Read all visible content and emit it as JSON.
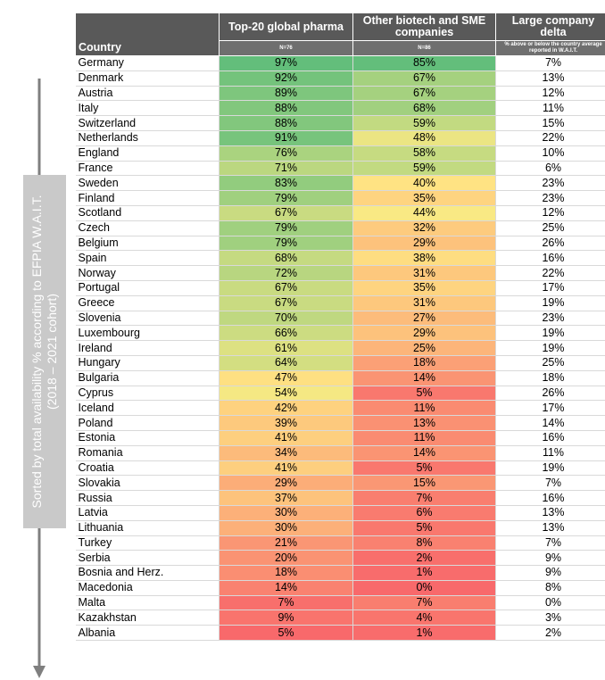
{
  "side_note": "Sorted by total availability % according to EFPIA W.A.I.T. (2018 – 2021 cohort)",
  "table": {
    "header": [
      "Country",
      "Top-20 global pharma",
      "Other biotech and SME companies",
      "Large company delta"
    ],
    "subheader": [
      "",
      "N=76",
      "N=86",
      "% above or below the country average reported in W.A.I.T."
    ],
    "rows": [
      [
        "Germany",
        "97%",
        "85%",
        "7%"
      ],
      [
        "Denmark",
        "92%",
        "67%",
        "13%"
      ],
      [
        "Austria",
        "89%",
        "67%",
        "12%"
      ],
      [
        "Italy",
        "88%",
        "68%",
        "11%"
      ],
      [
        "Switzerland",
        "88%",
        "59%",
        "15%"
      ],
      [
        "Netherlands",
        "91%",
        "48%",
        "22%"
      ],
      [
        "England",
        "76%",
        "58%",
        "10%"
      ],
      [
        "France",
        "71%",
        "59%",
        "6%"
      ],
      [
        "Sweden",
        "83%",
        "40%",
        "23%"
      ],
      [
        "Finland",
        "79%",
        "35%",
        "23%"
      ],
      [
        "Scotland",
        "67%",
        "44%",
        "12%"
      ],
      [
        "Czech",
        "79%",
        "32%",
        "25%"
      ],
      [
        "Belgium",
        "79%",
        "29%",
        "26%"
      ],
      [
        "Spain",
        "68%",
        "38%",
        "16%"
      ],
      [
        "Norway",
        "72%",
        "31%",
        "22%"
      ],
      [
        "Portugal",
        "67%",
        "35%",
        "17%"
      ],
      [
        "Greece",
        "67%",
        "31%",
        "19%"
      ],
      [
        "Slovenia",
        "70%",
        "27%",
        "23%"
      ],
      [
        "Luxembourg",
        "66%",
        "29%",
        "19%"
      ],
      [
        "Ireland",
        "61%",
        "25%",
        "19%"
      ],
      [
        "Hungary",
        "64%",
        "18%",
        "25%"
      ],
      [
        "Bulgaria",
        "47%",
        "14%",
        "18%"
      ],
      [
        "Cyprus",
        "54%",
        "5%",
        "26%"
      ],
      [
        "Iceland",
        "42%",
        "11%",
        "17%"
      ],
      [
        "Poland",
        "39%",
        "13%",
        "14%"
      ],
      [
        "Estonia",
        "41%",
        "11%",
        "16%"
      ],
      [
        "Romania",
        "34%",
        "14%",
        "11%"
      ],
      [
        "Croatia",
        "41%",
        "5%",
        "19%"
      ],
      [
        "Slovakia",
        "29%",
        "15%",
        "7%"
      ],
      [
        "Russia",
        "37%",
        "7%",
        "16%"
      ],
      [
        "Latvia",
        "30%",
        "6%",
        "13%"
      ],
      [
        "Lithuania",
        "30%",
        "5%",
        "13%"
      ],
      [
        "Turkey",
        "21%",
        "8%",
        "7%"
      ],
      [
        "Serbia",
        "20%",
        "2%",
        "9%"
      ],
      [
        "Bosnia and Herz.",
        "18%",
        "1%",
        "9%"
      ],
      [
        "Macedonia",
        "14%",
        "0%",
        "8%"
      ],
      [
        "Malta",
        "7%",
        "7%",
        "0%"
      ],
      [
        "Kazakhstan",
        "9%",
        "4%",
        "3%"
      ],
      [
        "Albania",
        "5%",
        "1%",
        "2%"
      ]
    ]
  }
}
